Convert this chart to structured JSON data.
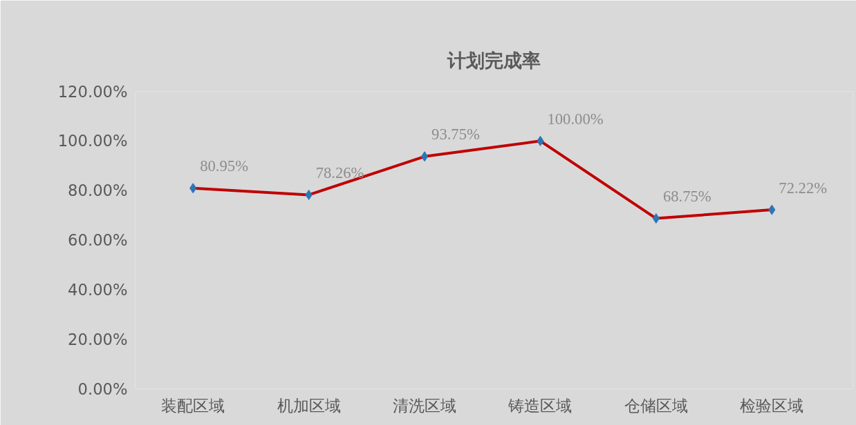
{
  "chart_data": {
    "type": "line",
    "title": "计划完成率",
    "categories": [
      "装配区域",
      "机加区域",
      "清洗区域",
      "铸造区域",
      "仓储区域",
      "检验区域"
    ],
    "series": [
      {
        "color": "#c00000",
        "values": [
          80.95,
          78.26,
          93.75,
          100,
          68.75,
          72.22
        ],
        "value_labels": [
          "80.95%",
          "78.26%",
          "93.75%",
          "100.00%",
          "68.75%",
          "72.22%"
        ]
      }
    ],
    "ylim": [
      0,
      120
    ],
    "yticks": [
      {
        "value": 0,
        "label": "0.00%"
      },
      {
        "value": 20,
        "label": "20.00%"
      },
      {
        "value": 40,
        "label": "40.00%"
      },
      {
        "value": 60,
        "label": "60.00%"
      },
      {
        "value": 80,
        "label": "80.00%"
      },
      {
        "value": 100,
        "label": "100.00%"
      },
      {
        "value": 120,
        "label": "120.00%"
      }
    ],
    "grid": false,
    "marker": "diamond",
    "line_style": "solid"
  }
}
